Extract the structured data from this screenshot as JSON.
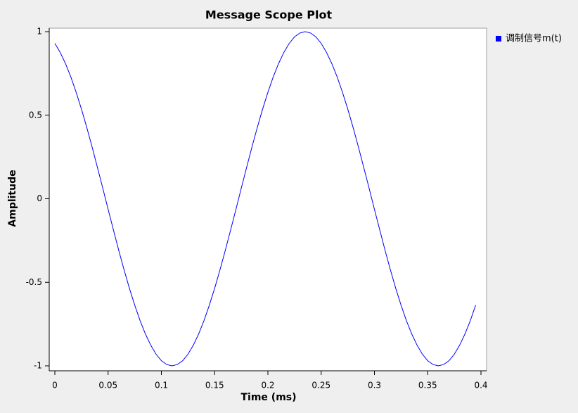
{
  "chart_data": {
    "type": "line",
    "title": "Message Scope Plot",
    "x_label": "Time (ms)",
    "y_label": "Amplitude",
    "x": [
      0,
      0.005,
      0.01,
      0.015,
      0.02,
      0.025,
      0.03,
      0.035,
      0.04,
      0.045,
      0.05,
      0.055,
      0.06,
      0.065,
      0.07,
      0.075,
      0.08,
      0.085,
      0.09,
      0.095,
      0.1,
      0.105,
      0.11,
      0.115,
      0.12,
      0.125,
      0.13,
      0.135,
      0.14,
      0.145,
      0.15,
      0.155,
      0.16,
      0.165,
      0.17,
      0.175,
      0.18,
      0.185,
      0.19,
      0.195,
      0.2,
      0.205,
      0.21,
      0.215,
      0.22,
      0.225,
      0.23,
      0.235,
      0.24,
      0.245,
      0.25,
      0.255,
      0.26,
      0.265,
      0.27,
      0.275,
      0.28,
      0.285,
      0.29,
      0.295,
      0.3,
      0.305,
      0.31,
      0.315,
      0.32,
      0.325,
      0.33,
      0.335,
      0.34,
      0.345,
      0.35,
      0.355,
      0.36,
      0.365,
      0.37,
      0.375,
      0.38,
      0.385,
      0.39,
      0.395
    ],
    "series": [
      {
        "name": "调制信号m(t)",
        "color": "#0000ff",
        "values": [
          0.93,
          0.876,
          0.809,
          0.729,
          0.637,
          0.536,
          0.426,
          0.309,
          0.187,
          0.063,
          -0.063,
          -0.187,
          -0.309,
          -0.426,
          -0.536,
          -0.637,
          -0.729,
          -0.809,
          -0.876,
          -0.93,
          -0.969,
          -0.992,
          -1,
          -0.992,
          -0.969,
          -0.93,
          -0.876,
          -0.809,
          -0.729,
          -0.637,
          -0.536,
          -0.426,
          -0.309,
          -0.187,
          -0.063,
          0.063,
          0.187,
          0.309,
          0.426,
          0.536,
          0.637,
          0.729,
          0.809,
          0.876,
          0.93,
          0.969,
          0.992,
          1,
          0.992,
          0.969,
          0.93,
          0.876,
          0.809,
          0.729,
          0.637,
          0.536,
          0.426,
          0.309,
          0.187,
          0.063,
          -0.063,
          -0.187,
          -0.309,
          -0.426,
          -0.536,
          -0.637,
          -0.729,
          -0.809,
          -0.876,
          -0.93,
          -0.969,
          -0.992,
          -1,
          -0.992,
          -0.969,
          -0.93,
          -0.876,
          -0.809,
          -0.729,
          -0.637
        ]
      }
    ],
    "xlim": [
      0,
      0.4
    ],
    "xticks": [
      0,
      0.05,
      0.1,
      0.15,
      0.2,
      0.25,
      0.3,
      0.35,
      0.4
    ],
    "ylim": [
      -1,
      1
    ],
    "yticks": [
      -1,
      -0.5,
      0,
      0.5,
      1
    ],
    "grid": false,
    "legend": "right"
  }
}
